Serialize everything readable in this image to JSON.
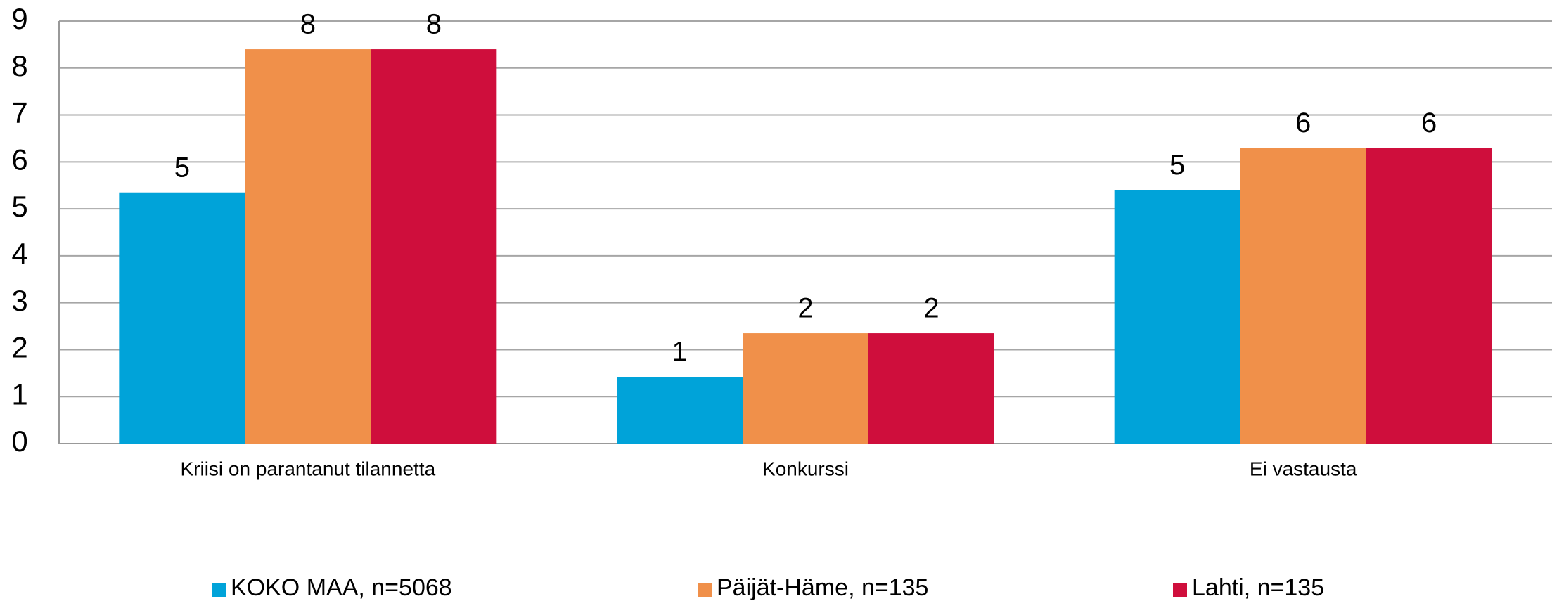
{
  "chart_data": {
    "type": "bar",
    "categories": [
      "Kriisi on parantanut tilannetta",
      "Konkurssi",
      "Ei vastausta"
    ],
    "series": [
      {
        "name": "KOKO MAA, n=5068",
        "color": "#00a3d9",
        "values": [
          5.35,
          1.42,
          5.4
        ],
        "value_labels": [
          "5",
          "1",
          "5"
        ]
      },
      {
        "name": "Päijät-Häme, n=135",
        "color": "#f0904a",
        "values": [
          8.4,
          2.35,
          6.3
        ],
        "value_labels": [
          "8",
          "2",
          "6"
        ]
      },
      {
        "name": "Lahti, n=135",
        "color": "#cf0e3c",
        "values": [
          8.4,
          2.35,
          6.3
        ],
        "value_labels": [
          "8",
          "2",
          "6"
        ]
      }
    ],
    "ylim": [
      0,
      9
    ],
    "yticks": [
      0,
      1,
      2,
      3,
      4,
      5,
      6,
      7,
      8,
      9
    ],
    "grid": true,
    "legend": "bottom"
  }
}
